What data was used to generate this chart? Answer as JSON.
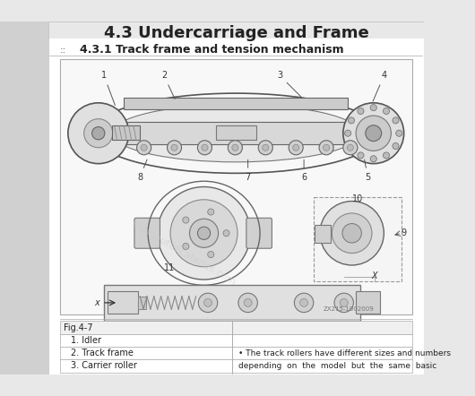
{
  "title": "4.3 Undercarriage and Frame",
  "subtitle": "4.3.1 Track frame and tension mechanism",
  "fig_label": "Fig.4-7",
  "items": [
    "1. Idler",
    "2. Track frame",
    "3. Carrier roller"
  ],
  "bullet_text": "The track rollers have different sizes and numbers",
  "bullet_text2": "depending  on  the  model  but  the  same  basic",
  "diagram_ref": "ZX215-1002009",
  "watermark": "www.autoecatanas.com",
  "bg_color": "#f0f0f0",
  "page_bg": "#e8e8e8",
  "white": "#ffffff",
  "border_color": "#888888",
  "text_color": "#222222",
  "light_gray": "#cccccc",
  "diagram_bg": "#f5f5f5"
}
